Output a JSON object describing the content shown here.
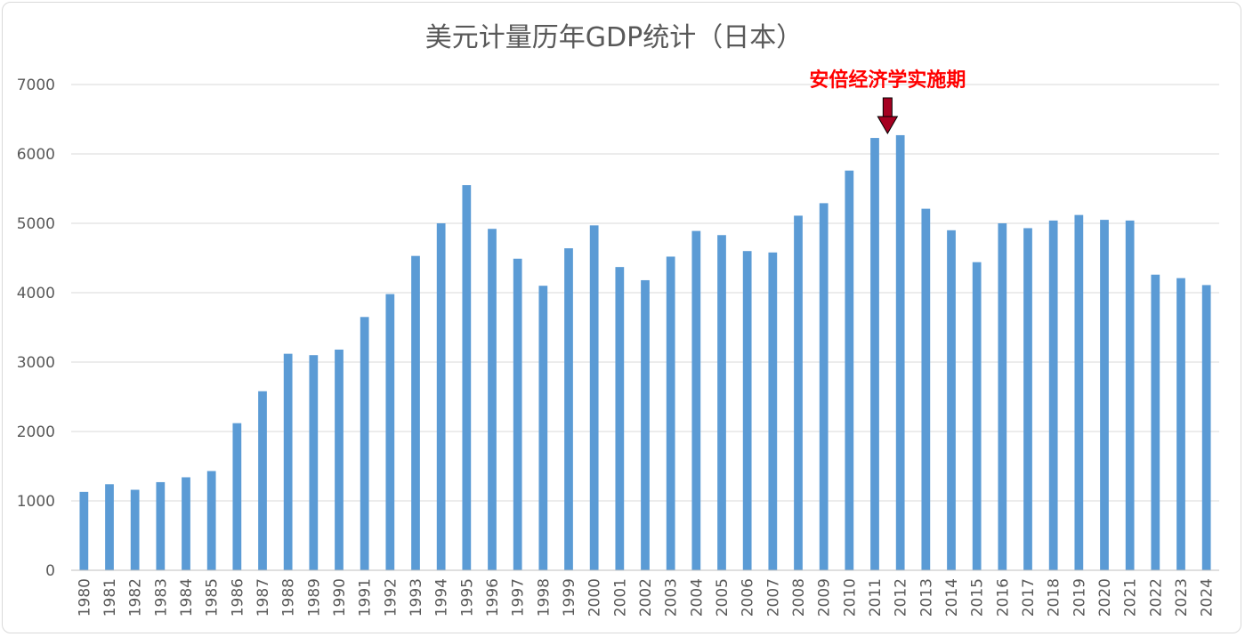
{
  "chart_data": {
    "type": "bar",
    "title": "美元计量历年GDP统计（日本）",
    "xlabel": "",
    "ylabel": "",
    "ylim": [
      0,
      7000
    ],
    "yticks": [
      "0",
      "1000",
      "2000",
      "3000",
      "4000",
      "5000",
      "6000",
      "7000"
    ],
    "grid": true,
    "legend": "none",
    "colors": {
      "bar": "#5b9bd5",
      "grid": "#d9d9d9",
      "annotation_text": "#ff0000",
      "annotation_arrow": "#a50021"
    },
    "categories": [
      "1980",
      "1981",
      "1982",
      "1983",
      "1984",
      "1985",
      "1986",
      "1987",
      "1988",
      "1989",
      "1990",
      "1991",
      "1992",
      "1993",
      "1994",
      "1995",
      "1996",
      "1997",
      "1998",
      "1999",
      "2000",
      "2001",
      "2002",
      "2003",
      "2004",
      "2005",
      "2006",
      "2007",
      "2008",
      "2009",
      "2010",
      "2011",
      "2012",
      "2013",
      "2014",
      "2015",
      "2016",
      "2017",
      "2018",
      "2019",
      "2020",
      "2021",
      "2022",
      "2023",
      "2024"
    ],
    "values": [
      1130,
      1240,
      1160,
      1270,
      1340,
      1430,
      2120,
      2580,
      3120,
      3100,
      3180,
      3650,
      3980,
      4530,
      5000,
      5550,
      4920,
      4490,
      4100,
      4640,
      4970,
      4370,
      4180,
      4520,
      4890,
      4830,
      4600,
      4580,
      5110,
      5290,
      5760,
      6230,
      6270,
      5210,
      4900,
      4440,
      5000,
      4930,
      5040,
      5120,
      5050,
      5040,
      4260,
      4210,
      4110
    ],
    "annotation": {
      "text": "安倍经济学实施期",
      "category": "2011"
    }
  }
}
